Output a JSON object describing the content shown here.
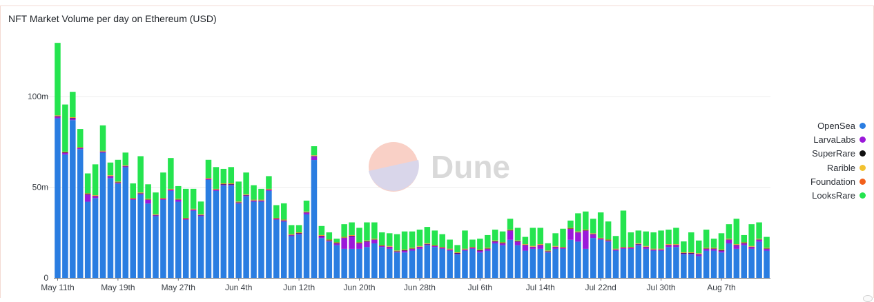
{
  "title": "NFT Market Volume per day on Ethereum (USD)",
  "watermark": "Dune",
  "chart_data": {
    "type": "bar",
    "stacked": true,
    "title": "NFT Market Volume per day on Ethereum (USD)",
    "x_tick_labels": [
      "May 11th",
      "May 19th",
      "May 27th",
      "Jun 4th",
      "Jun 12th",
      "Jun 20th",
      "Jun 28th",
      "Jul 6th",
      "Jul 14th",
      "Jul 22nd",
      "Jul 30th",
      "Aug 7th"
    ],
    "y_tick_labels": [
      "0",
      "50m",
      "100m"
    ],
    "y_ticks": [
      0,
      50,
      100
    ],
    "ylim": [
      0,
      130
    ],
    "y_unit": "million USD",
    "series": [
      {
        "name": "OpenSea",
        "color": "#2a7de1",
        "values": [
          88,
          68,
          87,
          71,
          42,
          44,
          69,
          55,
          52,
          61,
          43,
          46,
          41,
          34,
          43,
          48,
          42,
          32,
          37,
          34,
          54,
          48,
          51,
          51,
          41,
          45,
          42,
          42,
          48,
          32,
          31,
          23,
          24,
          35,
          65,
          22,
          20,
          18,
          16,
          16,
          16,
          17,
          19,
          17,
          16,
          14,
          14,
          15,
          16,
          18,
          17,
          16,
          15,
          13,
          15,
          16,
          14,
          15,
          19,
          18,
          21,
          18,
          15,
          16,
          16,
          14,
          16,
          16,
          21,
          20,
          16,
          22,
          21,
          20,
          15,
          16,
          16,
          18,
          16,
          15,
          15,
          17,
          17,
          13,
          13,
          12,
          15,
          15,
          14,
          19,
          16,
          18,
          16,
          20,
          15
        ]
      },
      {
        "name": "LarvaLabs",
        "color": "#9b19d9",
        "values": [
          1,
          1,
          1,
          0.5,
          4,
          1,
          0.5,
          1,
          0.5,
          0.5,
          0.5,
          0.5,
          2,
          0.5,
          0.5,
          0.5,
          1,
          0.5,
          0.5,
          0.5,
          0.5,
          0.5,
          0.5,
          0.5,
          0.5,
          0.5,
          0.5,
          0.5,
          0.5,
          0.5,
          0.5,
          0.5,
          0.5,
          1,
          2,
          1,
          0.5,
          1,
          6,
          7,
          3,
          3,
          2,
          0.5,
          1,
          0.5,
          1,
          1,
          1,
          0.5,
          0.5,
          0.5,
          0.5,
          0.5,
          0.5,
          0.5,
          1,
          1,
          1,
          1,
          5,
          2,
          3,
          1,
          2,
          0.5,
          1,
          0.5,
          6,
          5,
          10,
          2,
          0.5,
          0.5,
          0.5,
          0.5,
          0.5,
          0.5,
          1,
          0.5,
          0.5,
          1,
          1,
          0.5,
          0.5,
          1,
          1,
          1,
          1,
          2,
          2,
          1,
          1,
          1,
          1
        ]
      },
      {
        "name": "SuperRare",
        "color": "#111111",
        "values": [
          0.2,
          0.2,
          0.2,
          0.2,
          0.2,
          0.2,
          0.2,
          0.2,
          0.2,
          0.2,
          0.2,
          0.2,
          0.2,
          0.2,
          0.2,
          0.2,
          0.2,
          0.2,
          0.2,
          0.2,
          0.2,
          0.2,
          0.2,
          0.2,
          0.2,
          0.2,
          0.2,
          0.2,
          0.2,
          0.2,
          0.2,
          0.2,
          0.2,
          0.2,
          0.2,
          0.2,
          0.2,
          0.2,
          0.2,
          0.2,
          0.2,
          0.2,
          0.2,
          0.2,
          0.2,
          0.2,
          0.2,
          0.2,
          0.2,
          0.2,
          0.2,
          0.2,
          0.2,
          0.2,
          0.2,
          0.2,
          0.2,
          0.2,
          0.2,
          0.2,
          0.2,
          0.2,
          0.2,
          0.2,
          0.2,
          0.2,
          0.2,
          0.2,
          0.2,
          0.2,
          0.2,
          0.2,
          0.2,
          0.2,
          0.2,
          0.2,
          0.2,
          0.2,
          0.2,
          0.2,
          0.2,
          0.2,
          0.2,
          0.2,
          0.2,
          0.2,
          0.2,
          0.2,
          0.2,
          0.2,
          0.2,
          0.2,
          0.2,
          0.2,
          0.2
        ]
      },
      {
        "name": "Rarible",
        "color": "#f2c230",
        "values": [
          0.2,
          0.2,
          0.2,
          0.2,
          0.2,
          0.2,
          0.2,
          0.2,
          0.2,
          0.2,
          0.2,
          0.2,
          0.2,
          0.2,
          0.2,
          0.2,
          0.2,
          0.2,
          0.2,
          0.2,
          0.2,
          0.2,
          0.2,
          0.2,
          0.2,
          0.2,
          0.2,
          0.2,
          0.2,
          0.2,
          0.2,
          0.2,
          0.2,
          0.2,
          0.2,
          0.2,
          0.2,
          0.2,
          0.2,
          0.2,
          0.2,
          0.2,
          0.2,
          0.2,
          0.2,
          0.2,
          0.2,
          0.2,
          0.2,
          0.2,
          0.2,
          0.2,
          0.2,
          0.2,
          0.2,
          0.2,
          0.2,
          0.2,
          0.2,
          0.2,
          0.2,
          0.2,
          0.2,
          0.2,
          0.2,
          0.2,
          0.2,
          0.2,
          0.2,
          0.2,
          0.2,
          0.2,
          0.2,
          0.2,
          0.2,
          0.2,
          0.2,
          0.2,
          0.2,
          0.2,
          0.2,
          0.2,
          0.2,
          0.2,
          0.2,
          0.2,
          0.2,
          0.2,
          0.2,
          0.2,
          0.2,
          0.2,
          0.2,
          0.2,
          0.2
        ]
      },
      {
        "name": "Foundation",
        "color": "#f2601b",
        "values": [
          0.2,
          0.2,
          0.2,
          0.2,
          0.2,
          0.2,
          0.2,
          0.2,
          0.2,
          0.2,
          0.2,
          0.2,
          0.2,
          0.2,
          0.2,
          0.2,
          0.2,
          0.2,
          0.2,
          0.2,
          0.2,
          0.2,
          0.2,
          0.2,
          0.2,
          0.2,
          0.2,
          0.2,
          0.2,
          0.2,
          0.2,
          0.2,
          0.2,
          0.2,
          0.2,
          0.2,
          0.2,
          0.2,
          0.2,
          0.2,
          0.2,
          0.2,
          0.2,
          0.2,
          0.2,
          0.2,
          0.2,
          0.2,
          0.2,
          0.2,
          0.2,
          0.2,
          0.2,
          0.2,
          0.2,
          0.2,
          0.2,
          0.2,
          0.2,
          0.2,
          0.2,
          0.2,
          0.2,
          0.2,
          0.2,
          0.2,
          0.2,
          0.2,
          0.2,
          0.2,
          0.2,
          0.2,
          0.2,
          0.2,
          0.2,
          0.2,
          0.2,
          0.2,
          0.2,
          0.2,
          0.2,
          0.2,
          0.2,
          0.2,
          0.2,
          0.2,
          0.2,
          0.2,
          0.2,
          0.2,
          0.2,
          0.2,
          0.2,
          0.2,
          0.2
        ]
      },
      {
        "name": "LooksRare",
        "color": "#25e44f",
        "values": [
          40,
          26,
          14,
          10,
          11,
          17,
          14,
          7,
          12,
          7,
          8,
          20,
          8,
          12,
          14,
          17,
          7,
          16,
          11,
          7,
          10,
          12,
          8,
          9,
          11,
          12,
          8,
          6,
          7,
          7,
          9,
          5,
          4,
          6,
          5,
          5,
          4,
          2,
          7,
          7,
          8,
          10,
          9,
          7,
          7,
          9,
          10,
          9,
          9,
          9,
          8,
          7,
          5,
          4,
          10,
          4,
          6,
          7,
          6,
          6,
          6,
          7,
          4,
          10,
          9,
          4,
          7,
          10,
          4,
          10,
          10,
          8,
          14,
          10,
          7,
          20,
          8,
          7,
          8,
          9,
          10,
          8,
          9,
          6,
          11,
          7,
          10,
          5,
          9,
          8,
          14,
          4,
          12,
          9,
          6
        ]
      }
    ],
    "legend": {
      "position": "right",
      "items": [
        "OpenSea",
        "LarvaLabs",
        "SuperRare",
        "Rarible",
        "Foundation",
        "LooksRare"
      ]
    },
    "grid": true
  }
}
